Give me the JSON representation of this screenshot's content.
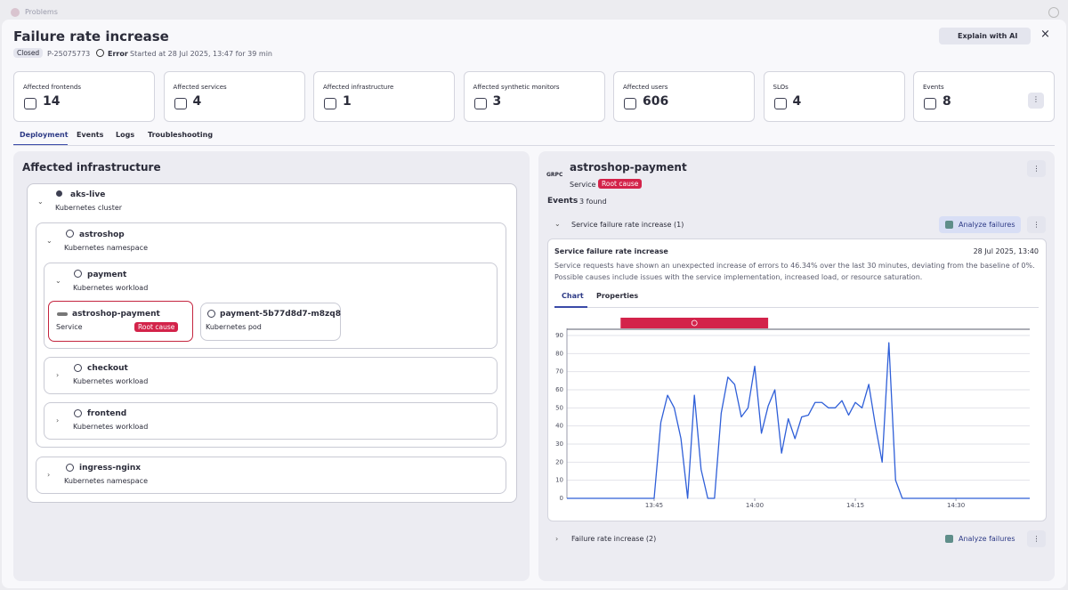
{
  "window": {
    "title": "Problems"
  },
  "header": {
    "title": "Failure rate increase",
    "status": "Closed",
    "problem_id": "P-25075773",
    "severity": "Error",
    "started": "Started at 28 Jul 2025, 13:47 for 39 min",
    "explain_button": "Explain with AI"
  },
  "stats": [
    {
      "label": "Affected frontends",
      "value": 14
    },
    {
      "label": "Affected services",
      "value": 4
    },
    {
      "label": "Affected infrastructure",
      "value": 1
    },
    {
      "label": "Affected synthetic monitors",
      "value": 3
    },
    {
      "label": "Affected users",
      "value": 606
    },
    {
      "label": "SLOs",
      "value": 4
    },
    {
      "label": "Events",
      "value": 8
    }
  ],
  "tabs": [
    "Deployment",
    "Events",
    "Logs",
    "Troubleshooting"
  ],
  "infrastructure": {
    "title": "Affected infrastructure",
    "cluster": {
      "name": "aks-live",
      "type": "Kubernetes cluster"
    },
    "namespace": {
      "name": "astroshop",
      "type": "Kubernetes namespace"
    },
    "workload": {
      "name": "payment",
      "type": "Kubernetes workload"
    },
    "service": {
      "name": "astroshop-payment",
      "type": "Service",
      "badge": "Root cause"
    },
    "pod": {
      "name": "payment-5b77d8d7-m8zq8",
      "type": "Kubernetes pod"
    },
    "other_workloads": [
      {
        "name": "checkout",
        "type": "Kubernetes workload"
      },
      {
        "name": "frontend",
        "type": "Kubernetes workload"
      }
    ],
    "other_namespace": {
      "name": "ingress-nginx",
      "type": "Kubernetes namespace"
    }
  },
  "details": {
    "icon": "GRPC",
    "name": "astroshop-payment",
    "type": "Service",
    "badge": "Root cause",
    "events_label": "Events",
    "events_count": "3 found",
    "groups": [
      {
        "title": "Service failure rate increase (1)",
        "action": "Analyze failures"
      },
      {
        "title": "Failure rate increase (2)",
        "action": "Analyze failures"
      }
    ],
    "card": {
      "title": "Service failure rate increase",
      "date": "28 Jul 2025, 13:40",
      "description": [
        "Service requests have shown an unexpected increase of errors to 46.34% over the last 30 minutes, deviating from the baseline of 0%.",
        "Possible causes include issues with the service implementation, increased load, or resource saturation."
      ],
      "tabs": [
        "Chart",
        "Properties"
      ]
    }
  },
  "chart_data": {
    "type": "line",
    "x": [
      "13:32",
      "13:45",
      "13:46",
      "13:47",
      "13:48",
      "13:49",
      "13:50",
      "13:51",
      "13:52",
      "13:53",
      "13:54",
      "13:55",
      "13:56",
      "13:57",
      "13:58",
      "13:59",
      "14:00",
      "14:01",
      "14:02",
      "14:03",
      "14:04",
      "14:05",
      "14:06",
      "14:07",
      "14:08",
      "14:09",
      "14:10",
      "14:11",
      "14:12",
      "14:13",
      "14:14",
      "14:15",
      "14:16",
      "14:17",
      "14:18",
      "14:19",
      "14:20",
      "14:21",
      "14:22",
      "14:41"
    ],
    "series": [
      {
        "color": "#2f5fd8",
        "values": [
          0,
          0,
          42,
          57,
          50,
          33,
          0,
          57,
          16,
          0,
          0,
          47,
          67,
          63,
          45,
          50,
          73,
          36,
          51,
          60,
          25,
          44,
          33,
          45,
          46,
          53,
          53,
          50,
          50,
          54,
          46,
          53,
          50,
          63,
          40,
          20,
          86,
          10,
          0,
          0
        ]
      }
    ],
    "event_span": [
      "13:40",
      "14:02"
    ],
    "event_color": "#d3234a",
    "xlim": [
      "13:32",
      "14:41"
    ],
    "xticks": [
      "13:45",
      "14:00",
      "14:15",
      "14:30"
    ],
    "ylim": [
      0,
      90
    ],
    "yticks": [
      0,
      10,
      20,
      30,
      40,
      50,
      60,
      70,
      80,
      90
    ],
    "grid": true
  }
}
